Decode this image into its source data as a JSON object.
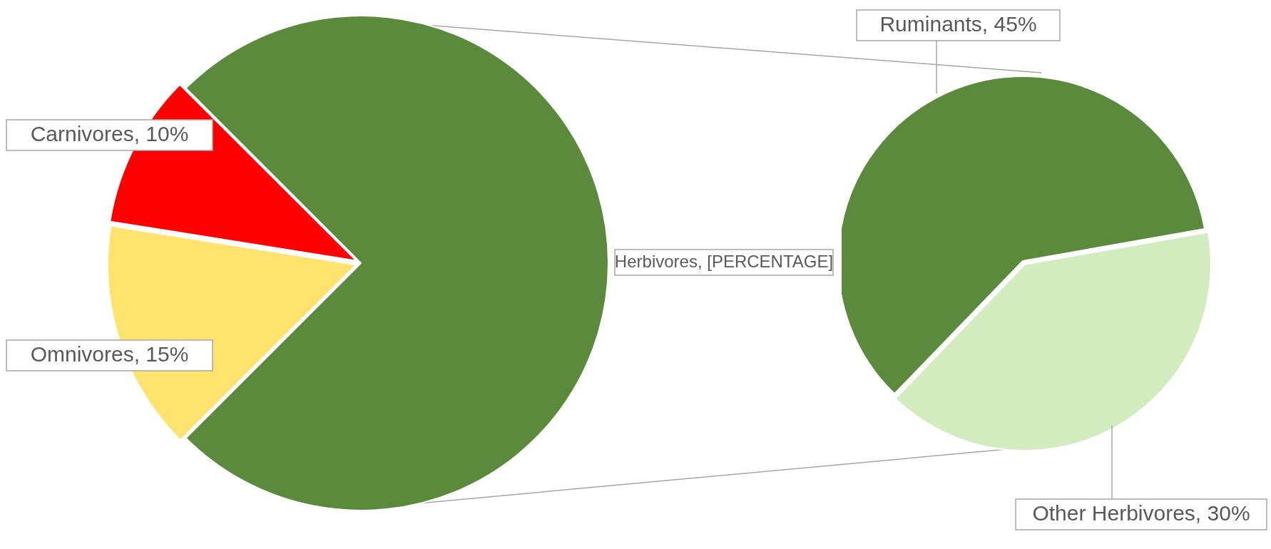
{
  "chart_data": [
    {
      "type": "pie",
      "categories": [
        "Herbivores",
        "Omnivores",
        "Carnivores"
      ],
      "values": [
        75,
        15,
        10
      ],
      "colors": [
        "#5b8a3c",
        "#ffe36e",
        "#ff0000"
      ],
      "value_labels": [
        "[PERCENTAGE]",
        "15%",
        "10%"
      ]
    },
    {
      "type": "pie",
      "categories": [
        "Other Herbivores",
        "Ruminants"
      ],
      "values": [
        30,
        45
      ],
      "colors": [
        "#d2ecc0",
        "#5b8a3c"
      ],
      "value_labels": [
        "30%",
        "45%"
      ]
    }
  ]
}
